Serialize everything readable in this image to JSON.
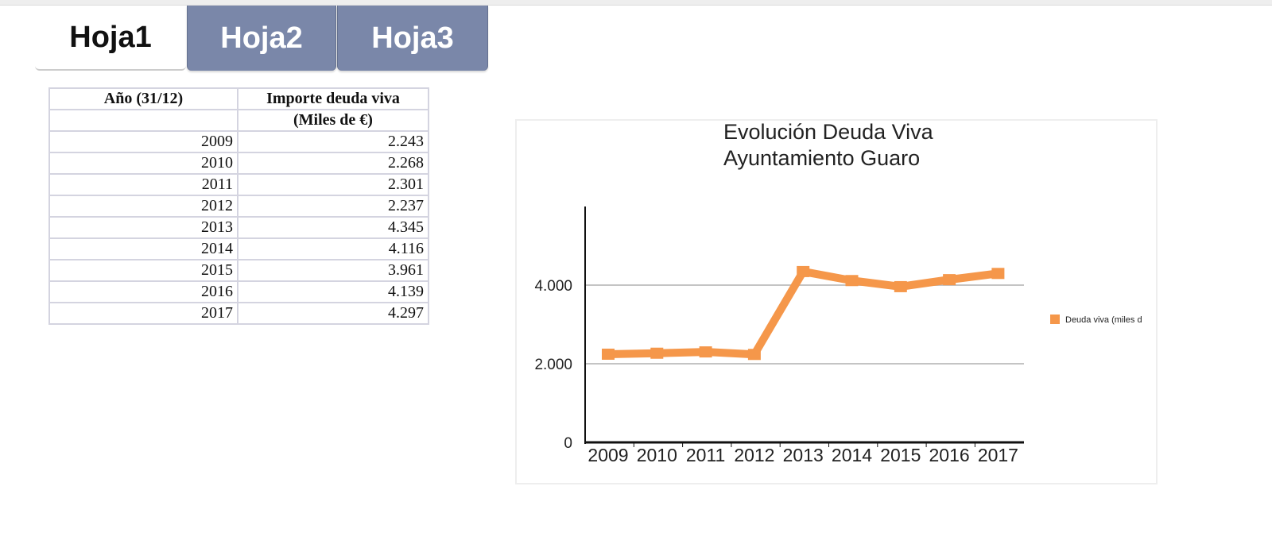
{
  "tabs": [
    {
      "label": "Hoja1",
      "active": true
    },
    {
      "label": "Hoja2",
      "active": false
    },
    {
      "label": "Hoja3",
      "active": false
    }
  ],
  "table": {
    "headers": [
      [
        "Año (31/12)",
        "Importe deuda viva"
      ],
      [
        "",
        "(Miles de €)"
      ]
    ],
    "rows": [
      [
        "2009",
        "2.243"
      ],
      [
        "2010",
        "2.268"
      ],
      [
        "2011",
        "2.301"
      ],
      [
        "2012",
        "2.237"
      ],
      [
        "2013",
        "4.345"
      ],
      [
        "2014",
        "4.116"
      ],
      [
        "2015",
        "3.961"
      ],
      [
        "2016",
        "4.139"
      ],
      [
        "2017",
        "4.297"
      ]
    ]
  },
  "chart_data": {
    "type": "line",
    "title": [
      "Evolución Deuda Viva",
      "Ayuntamiento Guaro"
    ],
    "categories": [
      "2009",
      "2010",
      "2011",
      "2012",
      "2013",
      "2014",
      "2015",
      "2016",
      "2017"
    ],
    "series": [
      {
        "name": "Deuda viva (miles d",
        "color": "#f5974a",
        "values": [
          2243,
          2268,
          2301,
          2237,
          4345,
          4116,
          3961,
          4139,
          4297
        ]
      }
    ],
    "yticks": [
      0,
      2000,
      4000
    ],
    "ytick_labels": [
      "0",
      "2.000",
      "4.000"
    ],
    "ylim": [
      0,
      6000
    ],
    "grid": true,
    "legend": "right"
  }
}
